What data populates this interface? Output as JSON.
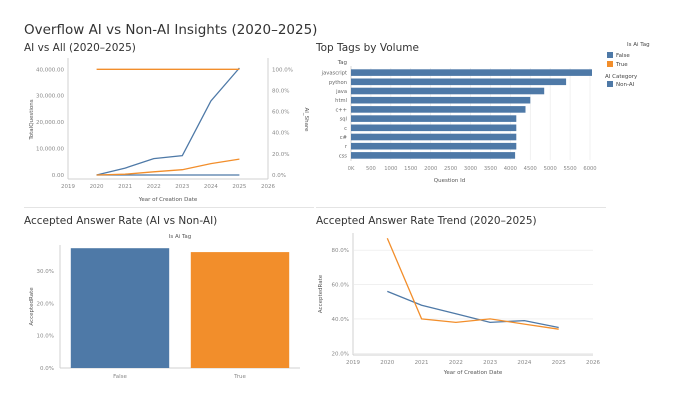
{
  "dashboard_title": "Overflow AI vs Non-AI Insights (2020–2025)",
  "colors": {
    "blue": "#4e79a7",
    "orange": "#f28e2b",
    "tick": "#888888",
    "grid": "#e8e8e8"
  },
  "chart_data": [
    {
      "type": "line",
      "title": "AI vs All (2020–2025)",
      "xlabel": "Year of Creation Date",
      "ylabel": "TotalQuestions",
      "y2label": "AI_Share",
      "x_ticks": [
        "2019",
        "2020",
        "2021",
        "2022",
        "2023",
        "2024",
        "2025",
        "2026"
      ],
      "xlim": [
        2019,
        2026
      ],
      "ylim": [
        0,
        42000
      ],
      "y2lim": [
        0,
        105
      ],
      "y_ticks": [
        "0.00",
        "10,000.00",
        "20,000.00",
        "30,000.00",
        "40,000.00"
      ],
      "y2_ticks": [
        "0.0%",
        "20.0%",
        "40.0%",
        "60.0%",
        "80.0%",
        "100.0%"
      ],
      "series": [
        {
          "color": "blue",
          "axis": "left",
          "x": [
            2020,
            2021,
            2022,
            2023,
            2024,
            2025
          ],
          "values": [
            0,
            0,
            0,
            0,
            0,
            0
          ]
        },
        {
          "color": "blue",
          "axis": "left",
          "x": [
            2020,
            2021,
            2022,
            2023,
            2024,
            2025
          ],
          "values": [
            0,
            2600,
            6200,
            7300,
            28000,
            40500
          ]
        },
        {
          "color": "orange",
          "axis": "left",
          "x": [
            2020,
            2021,
            2022,
            2023,
            2024,
            2025
          ],
          "values": [
            0,
            300,
            1200,
            2000,
            4300,
            6000
          ]
        },
        {
          "color": "orange",
          "axis": "right",
          "x": [
            2020,
            2021,
            2022,
            2023,
            2024,
            2025
          ],
          "values": [
            100,
            100,
            100,
            100,
            100,
            100
          ]
        }
      ]
    },
    {
      "type": "bar",
      "orientation": "horizontal",
      "title": "Top Tags by Volume",
      "category_header": "Tag",
      "xlabel": "Question Id",
      "categories": [
        "javascript",
        "python",
        "java",
        "html",
        "c++",
        "sql",
        "c",
        "c#",
        "r",
        "css"
      ],
      "values": [
        6050,
        5400,
        4850,
        4500,
        4380,
        4150,
        4150,
        4150,
        4150,
        4120
      ],
      "xlim": [
        0,
        6100
      ],
      "x_ticks": [
        "0K",
        "500",
        "1000",
        "1500",
        "2000",
        "2500",
        "3000",
        "3500",
        "4000",
        "4500",
        "5000",
        "5500",
        "6000"
      ],
      "color": "blue"
    },
    {
      "type": "bar",
      "title": "Accepted Answer Rate (AI vs Non-AI)",
      "header": "Is Ai Tag",
      "ylabel": "AcceptedRate",
      "categories": [
        "False",
        "True"
      ],
      "values": [
        37.0,
        35.8
      ],
      "colors": [
        "blue",
        "orange"
      ],
      "ylim": [
        0,
        38
      ],
      "y_ticks": [
        "0.0%",
        "10.0%",
        "20.0%",
        "30.0%"
      ]
    },
    {
      "type": "line",
      "title": "Accepted Answer Rate Trend (2020–2025)",
      "xlabel": "Year of Creation Date",
      "ylabel": "AcceptedRate",
      "xlim": [
        2019,
        2026
      ],
      "ylim": [
        19,
        90
      ],
      "x_ticks": [
        "2019",
        "2020",
        "2021",
        "2022",
        "2023",
        "2024",
        "2025",
        "2026"
      ],
      "y_ticks": [
        "20.0%",
        "40.0%",
        "60.0%",
        "80.0%"
      ],
      "series": [
        {
          "color": "blue",
          "x": [
            2020,
            2021,
            2022,
            2023,
            2024,
            2025
          ],
          "values": [
            56,
            48,
            43,
            38,
            39,
            35
          ]
        },
        {
          "color": "orange",
          "x": [
            2020,
            2021,
            2022,
            2023,
            2024,
            2025
          ],
          "values": [
            87,
            40,
            38,
            40,
            37,
            34
          ]
        }
      ]
    }
  ],
  "legend": {
    "is_ai_tag": {
      "title": "Is Ai Tag",
      "items": [
        {
          "label": "False",
          "color": "blue"
        },
        {
          "label": "True",
          "color": "orange"
        }
      ]
    },
    "ai_category": {
      "title": "AI Category",
      "items": [
        {
          "label": "Non-AI",
          "color": "blue"
        }
      ]
    }
  }
}
